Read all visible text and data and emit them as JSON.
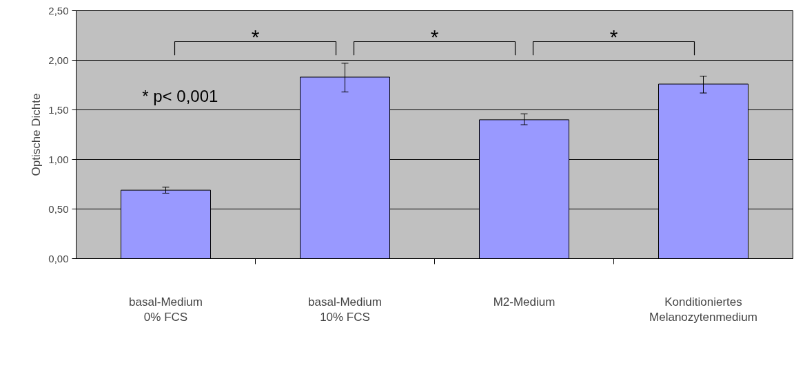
{
  "chart_data": {
    "type": "bar",
    "ylabel": "Optische Dichte",
    "categories": [
      "basal-Medium\n0% FCS",
      "basal-Medium\n10% FCS",
      "M2-Medium",
      "Konditioniertes\nMelanozytenmedium"
    ],
    "values": [
      0.69,
      1.83,
      1.4,
      1.76
    ],
    "errors": [
      [
        0.66,
        0.72
      ],
      [
        1.68,
        1.97
      ],
      [
        1.35,
        1.46
      ],
      [
        1.67,
        1.84
      ]
    ],
    "color": "#9999ff",
    "ylim": [
      0,
      2.5
    ],
    "yticks": [
      {
        "value": 0,
        "label": "0,00"
      },
      {
        "value": 0.5,
        "label": "0,50"
      },
      {
        "value": 1,
        "label": "1,00"
      },
      {
        "value": 1.5,
        "label": "1,50"
      },
      {
        "value": 2,
        "label": "2,00"
      },
      {
        "value": 2.5,
        "label": "2,50"
      }
    ],
    "grid": "y",
    "annotations": [
      "*",
      "*",
      "*",
      "* p< 0,001"
    ]
  }
}
